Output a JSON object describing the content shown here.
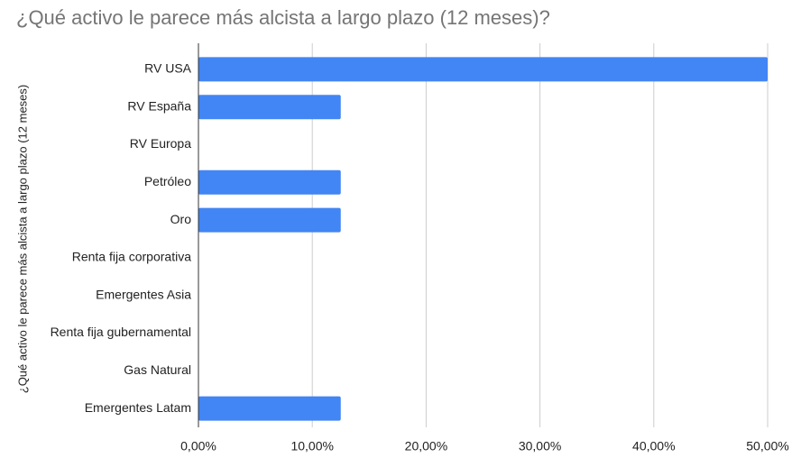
{
  "chart_data": {
    "type": "hbar",
    "title": "¿Qué activo le parece más alcista a largo plazo (12 meses)?",
    "y_label": "¿Qué activo le parece más alcista a largo plazo (12 meses)",
    "categories": [
      "RV USA",
      "RV España",
      "RV Europa",
      "Petróleo",
      "Oro",
      "Renta fija corporativa",
      "Emergentes Asia",
      "Renta fija gubernamental",
      "Gas Natural",
      "Emergentes Latam"
    ],
    "values": [
      50,
      12.5,
      0,
      12.5,
      12.5,
      0,
      0,
      0,
      0,
      12.5
    ],
    "color": "#4285f4",
    "xlim": [
      0,
      50
    ],
    "xticks": [
      {
        "value": 0,
        "label": "0,00%"
      },
      {
        "value": 10,
        "label": "10,00%"
      },
      {
        "value": 20,
        "label": "20,00%"
      },
      {
        "value": 30,
        "label": "30,00%"
      },
      {
        "value": 40,
        "label": "40,00%"
      },
      {
        "value": 50,
        "label": "50,00%"
      }
    ],
    "grid": true
  }
}
